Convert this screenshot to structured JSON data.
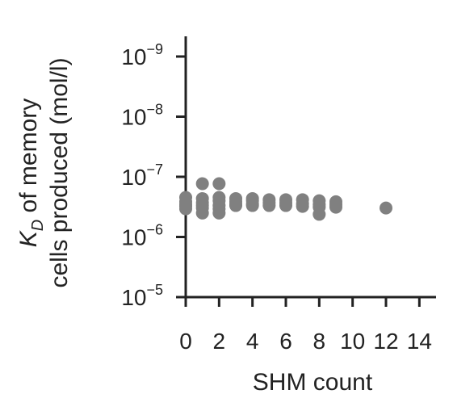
{
  "chart_data": {
    "type": "scatter",
    "title": "",
    "xlabel": "SHM count",
    "ylabel": {
      "prefix_symbol": "K",
      "prefix_subscript": "D",
      "line1_suffix": " of memory",
      "line2": "cells produced (mol/l)"
    },
    "x_scale": "linear",
    "y_scale": "log",
    "y_axis_inverted": true,
    "xlim": [
      0,
      15
    ],
    "ylim": [
      1e-05,
      1e-09
    ],
    "x_ticks": [
      0,
      2,
      4,
      6,
      8,
      10,
      12,
      14
    ],
    "x_tick_labels": [
      "0",
      "2",
      "4",
      "6",
      "8",
      "10",
      "12",
      "14"
    ],
    "y_ticks": [
      {
        "value": 1e-09,
        "base": "10",
        "exponent": "−9"
      },
      {
        "value": 1e-08,
        "base": "10",
        "exponent": "−8"
      },
      {
        "value": 1e-07,
        "base": "10",
        "exponent": "−7"
      },
      {
        "value": 1e-06,
        "base": "10",
        "exponent": "−6"
      },
      {
        "value": 1e-05,
        "base": "10",
        "exponent": "−5"
      }
    ],
    "grid": false,
    "point_color": "#808080",
    "series": [
      {
        "x": [
          0,
          0,
          0,
          0,
          0,
          1,
          1,
          1,
          1,
          1,
          1,
          2,
          2,
          2,
          2,
          2,
          2,
          3,
          3,
          3,
          3,
          4,
          4,
          4,
          4,
          5,
          5,
          5,
          6,
          6,
          6,
          7,
          7,
          7,
          8,
          8,
          8,
          8,
          9,
          9,
          9,
          12
        ],
        "y": [
          2.2e-07,
          2.6e-07,
          2.9e-07,
          3.1e-07,
          3.4e-07,
          1.3e-07,
          2.3e-07,
          2.7e-07,
          3e-07,
          3.3e-07,
          4e-07,
          1.3e-07,
          2.2e-07,
          2.5e-07,
          3e-07,
          3.4e-07,
          4e-07,
          2.3e-07,
          2.6e-07,
          2.9e-07,
          3e-07,
          2.3e-07,
          2.5e-07,
          2.8e-07,
          3e-07,
          2.4e-07,
          2.7e-07,
          3e-07,
          2.4e-07,
          2.7e-07,
          3e-07,
          2.4e-07,
          2.8e-07,
          3.1e-07,
          2.5e-07,
          2.9e-07,
          3.2e-07,
          4.2e-07,
          2.6e-07,
          2.9e-07,
          3.2e-07,
          3.3e-07
        ]
      }
    ]
  }
}
